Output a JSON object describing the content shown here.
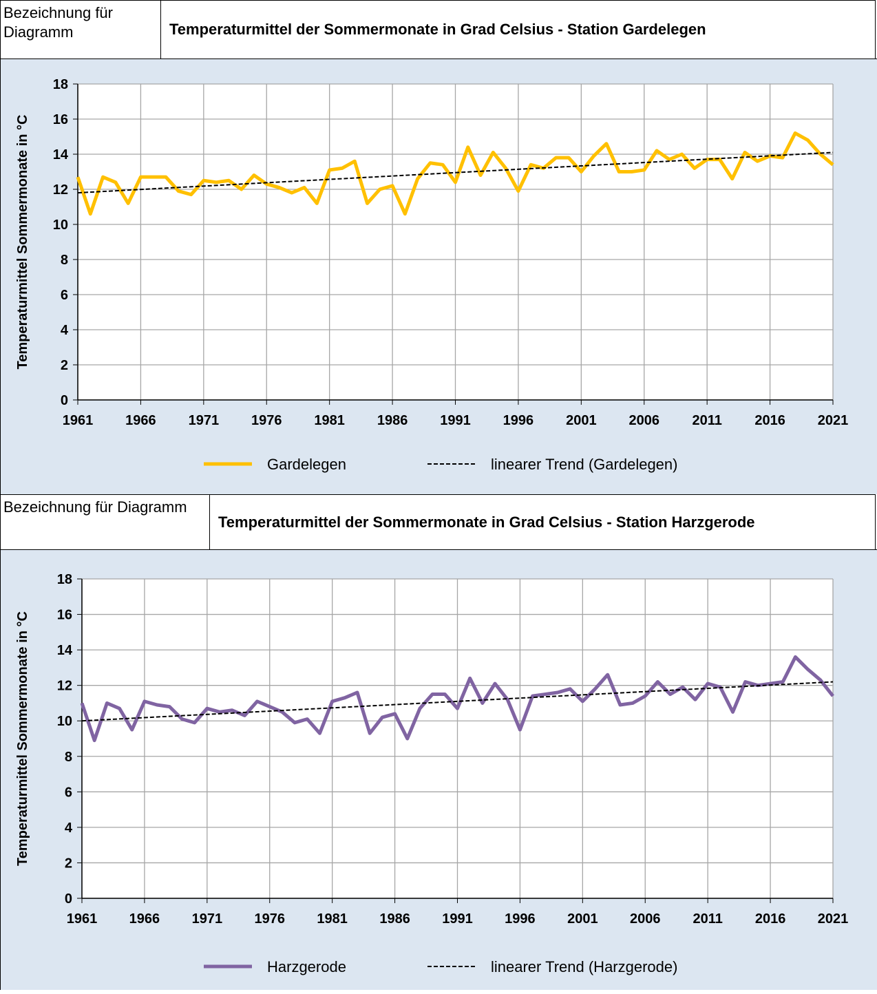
{
  "chart_data": [
    {
      "type": "line",
      "label": "Bezeichnung für Diagramm",
      "title": "Temperaturmittel der Sommermonate in Grad Celsius - Station Gardelegen",
      "y_label": "Temperaturmittel Sommermonate in °C",
      "x": [
        1961,
        1962,
        1963,
        1964,
        1965,
        1966,
        1967,
        1968,
        1969,
        1970,
        1971,
        1972,
        1973,
        1974,
        1975,
        1976,
        1977,
        1978,
        1979,
        1980,
        1981,
        1982,
        1983,
        1984,
        1985,
        1986,
        1987,
        1988,
        1989,
        1990,
        1991,
        1992,
        1993,
        1994,
        1995,
        1996,
        1997,
        1998,
        1999,
        2000,
        2001,
        2002,
        2003,
        2004,
        2005,
        2006,
        2007,
        2008,
        2009,
        2010,
        2011,
        2012,
        2013,
        2014,
        2015,
        2016,
        2017,
        2018,
        2019,
        2020,
        2021
      ],
      "series": [
        {
          "name": "Gardelegen",
          "color": "#ffc000",
          "line_style": "solid",
          "values": [
            12.7,
            10.6,
            12.7,
            12.4,
            11.2,
            12.7,
            12.7,
            12.7,
            11.9,
            11.7,
            12.5,
            12.4,
            12.5,
            12.0,
            12.8,
            12.3,
            12.1,
            11.8,
            12.1,
            11.2,
            13.1,
            13.2,
            13.6,
            11.2,
            12.0,
            12.2,
            10.6,
            12.6,
            13.5,
            13.4,
            12.4,
            14.4,
            12.8,
            14.1,
            13.2,
            11.9,
            13.4,
            13.2,
            13.8,
            13.8,
            13.0,
            13.9,
            14.6,
            13.0,
            13.0,
            13.1,
            14.2,
            13.7,
            14.0,
            13.2,
            13.7,
            13.7,
            12.6,
            14.1,
            13.6,
            13.9,
            13.8,
            15.2,
            14.8,
            14.0,
            13.4
          ]
        },
        {
          "name": "linearer Trend (Gardelegen)",
          "color": "#000000",
          "line_style": "dashed",
          "x": [
            1961,
            2021
          ],
          "values": [
            11.8,
            14.1
          ]
        }
      ],
      "xlim": [
        1961,
        2021
      ],
      "xticks": [
        1961,
        1966,
        1971,
        1976,
        1981,
        1986,
        1991,
        1996,
        2001,
        2006,
        2011,
        2016,
        2021
      ],
      "ylim": [
        0,
        18
      ],
      "yticks": [
        0,
        2,
        4,
        6,
        8,
        10,
        12,
        14,
        16,
        18
      ],
      "grid": true,
      "legend": "bottom"
    },
    {
      "type": "line",
      "label": "Bezeichnung für Diagramm",
      "title": "Temperaturmittel der Sommermonate in Grad Celsius - Station Harzgerode",
      "y_label": "Temperaturmittel Sommermonate in °C",
      "x": [
        1961,
        1962,
        1963,
        1964,
        1965,
        1966,
        1967,
        1968,
        1969,
        1970,
        1971,
        1972,
        1973,
        1974,
        1975,
        1976,
        1977,
        1978,
        1979,
        1980,
        1981,
        1982,
        1983,
        1984,
        1985,
        1986,
        1987,
        1988,
        1989,
        1990,
        1991,
        1992,
        1993,
        1994,
        1995,
        1996,
        1997,
        1998,
        1999,
        2000,
        2001,
        2002,
        2003,
        2004,
        2005,
        2006,
        2007,
        2008,
        2009,
        2010,
        2011,
        2012,
        2013,
        2014,
        2015,
        2016,
        2017,
        2018,
        2019,
        2020,
        2021
      ],
      "series": [
        {
          "name": "Harzgerode",
          "color": "#8064a2",
          "line_style": "solid",
          "values": [
            11.0,
            8.9,
            11.0,
            10.7,
            9.5,
            11.1,
            10.9,
            10.8,
            10.1,
            9.9,
            10.7,
            10.5,
            10.6,
            10.3,
            11.1,
            10.8,
            10.5,
            9.9,
            10.1,
            9.3,
            11.1,
            11.3,
            11.6,
            9.3,
            10.2,
            10.4,
            9.0,
            10.7,
            11.5,
            11.5,
            10.7,
            12.4,
            11.0,
            12.1,
            11.2,
            9.5,
            11.4,
            11.5,
            11.6,
            11.8,
            11.1,
            11.8,
            12.6,
            10.9,
            11.0,
            11.4,
            12.2,
            11.5,
            11.9,
            11.2,
            12.1,
            11.9,
            10.5,
            12.2,
            12.0,
            12.1,
            12.2,
            13.6,
            12.9,
            12.3,
            11.4
          ]
        },
        {
          "name": "linearer Trend (Harzgerode)",
          "color": "#000000",
          "line_style": "dashed",
          "x": [
            1961,
            2021
          ],
          "values": [
            10.0,
            12.2
          ]
        }
      ],
      "xlim": [
        1961,
        2021
      ],
      "xticks": [
        1961,
        1966,
        1971,
        1976,
        1981,
        1986,
        1991,
        1996,
        2001,
        2006,
        2011,
        2016,
        2021
      ],
      "ylim": [
        0,
        18
      ],
      "yticks": [
        0,
        2,
        4,
        6,
        8,
        10,
        12,
        14,
        16,
        18
      ],
      "grid": true,
      "legend": "bottom"
    }
  ]
}
